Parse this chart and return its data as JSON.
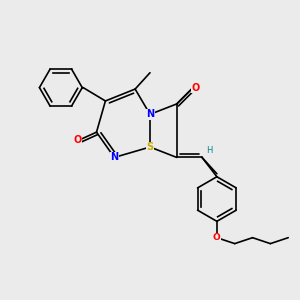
{
  "bg_color": "#ebebeb",
  "atom_colors": {
    "N": "#0000ff",
    "O": "#ff0000",
    "S": "#ccaa00",
    "H": "#008888",
    "C": "#000000"
  },
  "figsize": [
    3.0,
    3.0
  ],
  "dpi": 100
}
